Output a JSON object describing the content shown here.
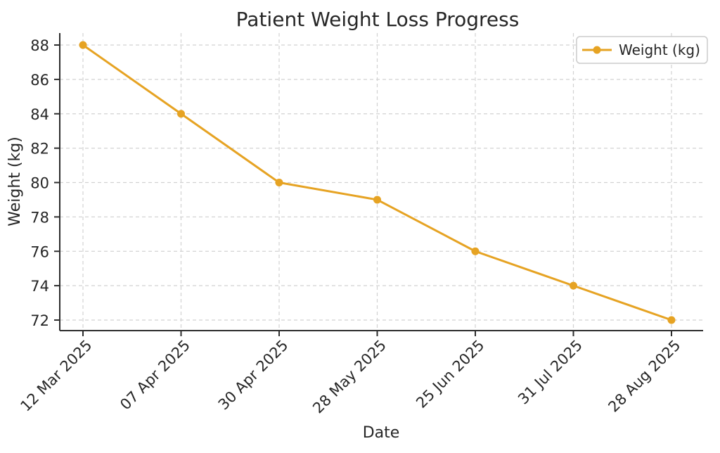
{
  "chart_data": {
    "type": "line",
    "title": "Patient Weight Loss Progress",
    "xlabel": "Date",
    "ylabel": "Weight (kg)",
    "categories": [
      "12 Mar 2025",
      "07 Apr 2025",
      "30 Apr 2025",
      "28 May 2025",
      "25 Jun 2025",
      "31 Jul 2025",
      "28 Aug 2025"
    ],
    "series": [
      {
        "name": "Weight (kg)",
        "values": [
          88,
          84,
          80,
          79,
          76,
          74,
          72
        ]
      }
    ],
    "yticks": [
      72,
      74,
      76,
      78,
      80,
      82,
      84,
      86,
      88
    ],
    "ylim": [
      71.4,
      88.7
    ],
    "grid": true,
    "grid_style": "dashed",
    "legend_position": "upper right",
    "legend": {
      "label": "Weight (kg)"
    },
    "marker": "circle-icon",
    "colors": {
      "line": "#E6A323",
      "marker": "#E6A323",
      "grid": "#d2d2d2",
      "spine": "#2d2d2d",
      "text": "#262626",
      "legend_border": "#cbcbcb",
      "background": "#ffffff"
    }
  }
}
